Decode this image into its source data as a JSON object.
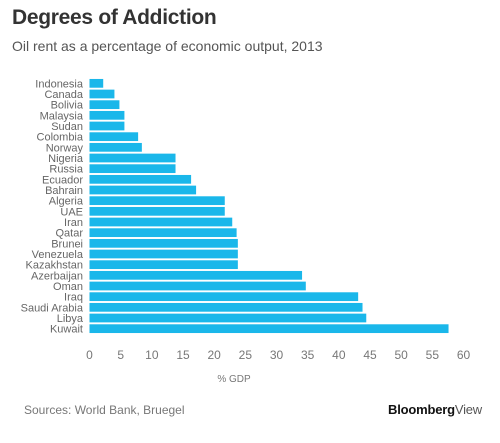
{
  "chart_data": {
    "type": "bar",
    "orientation": "horizontal",
    "title": "Degrees of Addiction",
    "subtitle": "Oil rent as a percentage of economic output, 2013",
    "xlabel": "% GDP",
    "ylabel": "",
    "xlim": [
      0,
      60
    ],
    "xticks": [
      0,
      5,
      10,
      15,
      20,
      25,
      30,
      35,
      40,
      45,
      50,
      55,
      60
    ],
    "grid": false,
    "color": "#1ab7ea",
    "categories": [
      "Indonesia",
      "Canada",
      "Bolivia",
      "Malaysia",
      "Sudan",
      "Colombia",
      "Norway",
      "Nigeria",
      "Russia",
      "Ecuador",
      "Bahrain",
      "Algeria",
      "UAE",
      "Iran",
      "Qatar",
      "Brunei",
      "Venezuela",
      "Kazakhstan",
      "Azerbaijan",
      "Oman",
      "Iraq",
      "Saudi Arabia",
      "Libya",
      "Kuwait"
    ],
    "values": [
      2.2,
      4.0,
      4.8,
      5.6,
      5.6,
      7.8,
      8.4,
      13.8,
      13.8,
      16.3,
      17.1,
      21.7,
      21.7,
      22.9,
      23.6,
      23.8,
      23.8,
      23.8,
      34.1,
      34.7,
      43.1,
      43.8,
      44.4,
      57.6
    ],
    "source": "Sources: World Bank, Bruegel",
    "brand": "Bloomberg",
    "brand_suffix": "View"
  }
}
